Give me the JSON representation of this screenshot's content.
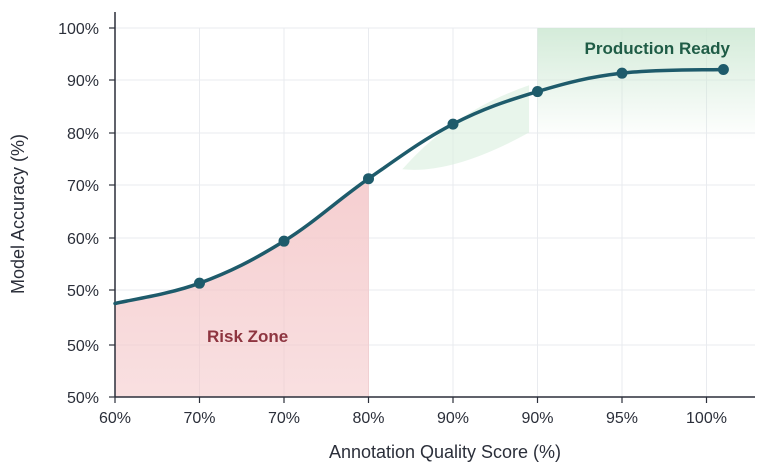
{
  "colors": {
    "line": "#1e5b6b",
    "risk_fill": "#f4c6c8",
    "risk_text": "#8e3540",
    "ready_fill": "#d3ebd8",
    "ready_text": "#1f5c46",
    "axis": "#2b2f3a",
    "grid": "#e9ebef"
  },
  "chart_data": {
    "type": "line",
    "xlabel": "Annotation Quality Score (%)",
    "ylabel": "Model Accuracy (%)",
    "grid": true,
    "x_tick_labels": [
      "60%",
      "70%",
      "70%",
      "80%",
      "90%",
      "90%",
      "95%",
      "100%"
    ],
    "y_tick_labels": [
      "50%",
      "50%",
      "50%",
      "60%",
      "70%",
      "80%",
      "90%",
      "100%"
    ],
    "series": [
      {
        "x_index": [
          0,
          1,
          2,
          3,
          4,
          5,
          6,
          7.2
        ],
        "values": [
          47.4,
          51.3,
          59.3,
          71.2,
          81.6,
          87.8,
          91.3,
          92.0
        ],
        "marker_from_index": 1
      }
    ],
    "zones": [
      {
        "label": "Risk Zone",
        "x_index_range": [
          0,
          3
        ],
        "kind": "risk"
      },
      {
        "label": "Production Ready",
        "x_index_range": [
          5,
          7.5
        ],
        "kind": "ready"
      }
    ]
  }
}
